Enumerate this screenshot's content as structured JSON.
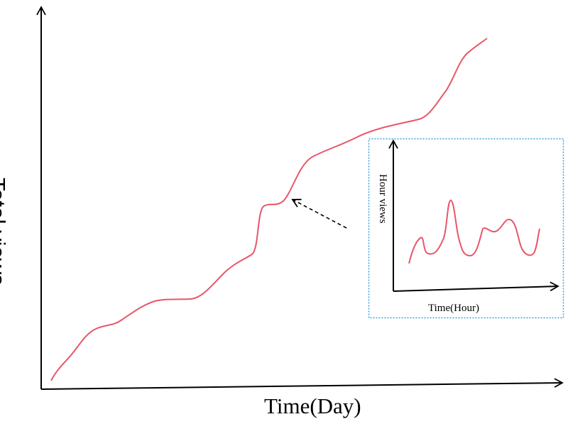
{
  "main_chart": {
    "xlabel": "Time(Day)",
    "ylabel": "Total views",
    "curve_color": "#e8566a",
    "axis_color": "#000000"
  },
  "inset": {
    "xlabel": "Time(Hour)",
    "ylabel": "Hour views",
    "curve_color": "#e8566a",
    "border_color": "#3aa0d8"
  },
  "callout": {
    "style": "dashed-arrow",
    "icon": "arrow-icon"
  }
}
